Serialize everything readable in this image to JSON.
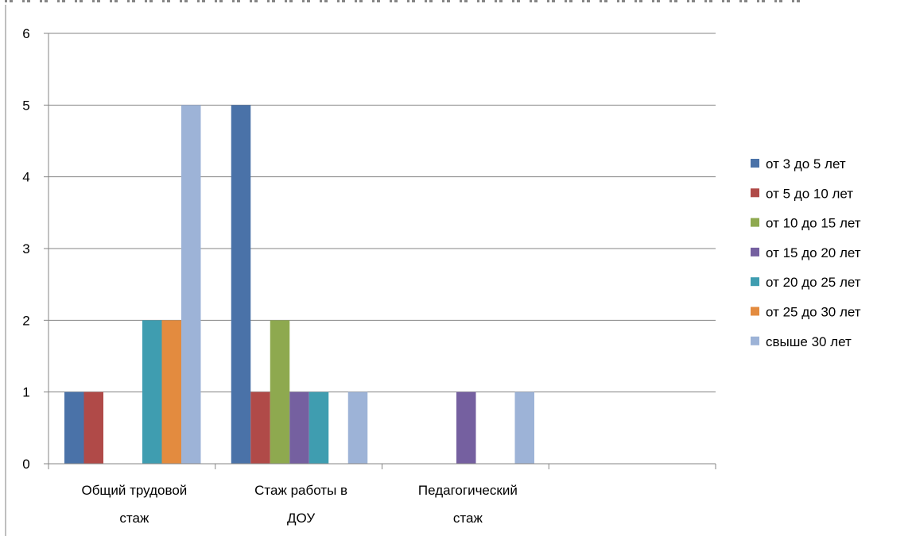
{
  "chart_data": {
    "type": "bar",
    "categories": [
      [
        "Общий трудовой",
        "стаж"
      ],
      [
        "Стаж работы в",
        "ДОУ"
      ],
      [
        "Педагогический",
        "стаж"
      ],
      [
        ""
      ]
    ],
    "series": [
      {
        "name": "от 3 до 5 лет",
        "color": "#4a72a8",
        "values": [
          1,
          5,
          0,
          0
        ]
      },
      {
        "name": "от 5 до 10 лет",
        "color": "#b04a48",
        "values": [
          1,
          1,
          0,
          0
        ]
      },
      {
        "name": "от 10 до 15 лет",
        "color": "#8ea94f",
        "values": [
          0,
          2,
          0,
          0
        ]
      },
      {
        "name": "от 15 до 20 лет",
        "color": "#7560a0",
        "values": [
          0,
          1,
          1,
          0
        ]
      },
      {
        "name": "от 20 до 25 лет",
        "color": "#3f9db0",
        "values": [
          2,
          1,
          0,
          0
        ]
      },
      {
        "name": "от 25 до 30 лет",
        "color": "#e38b3f",
        "values": [
          2,
          0,
          0,
          0
        ]
      },
      {
        "name": "свыше 30 лет",
        "color": "#9db3d7",
        "values": [
          5,
          1,
          1,
          0
        ]
      }
    ],
    "yticks": [
      "0",
      "1",
      "2",
      "3",
      "4",
      "5",
      "6"
    ],
    "ylim": [
      0,
      6
    ],
    "grid": true,
    "legend_position": "right"
  }
}
